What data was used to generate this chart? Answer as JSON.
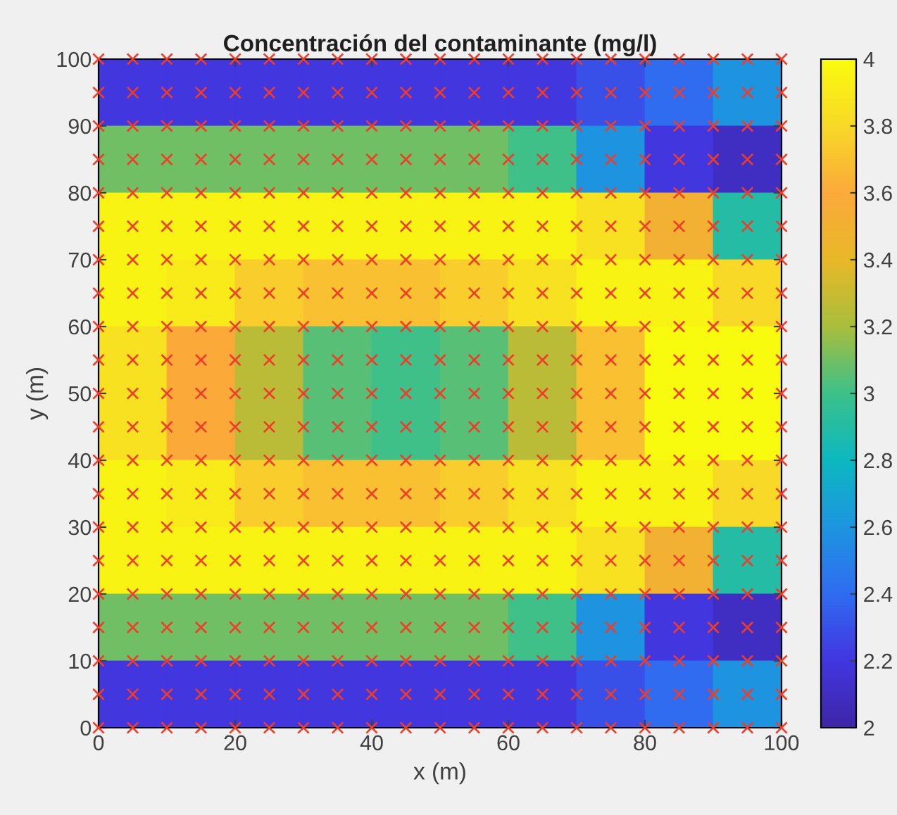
{
  "chart_data": {
    "type": "heatmap",
    "title": "Concentración del contaminante (mg/l)",
    "xlabel": "x (m)",
    "ylabel": "y (m)",
    "x": [
      5,
      15,
      25,
      35,
      45,
      55,
      65,
      75,
      85,
      95
    ],
    "y": [
      95,
      85,
      75,
      65,
      55,
      45,
      35,
      25,
      15,
      5
    ],
    "cells": [
      [
        2.2,
        2.2,
        2.2,
        2.2,
        2.2,
        2.2,
        2.2,
        2.3,
        2.4,
        2.6
      ],
      [
        3.1,
        3.1,
        3.1,
        3.1,
        3.1,
        3.1,
        3.0,
        2.6,
        2.2,
        2.1
      ],
      [
        3.95,
        3.95,
        3.95,
        3.95,
        3.95,
        3.95,
        3.95,
        3.85,
        3.5,
        2.9
      ],
      [
        3.95,
        3.9,
        3.75,
        3.7,
        3.7,
        3.75,
        3.85,
        3.95,
        3.95,
        3.8
      ],
      [
        3.85,
        3.6,
        3.25,
        3.05,
        3.0,
        3.05,
        3.25,
        3.7,
        4.0,
        4.0
      ],
      [
        3.85,
        3.6,
        3.25,
        3.05,
        3.0,
        3.05,
        3.25,
        3.7,
        4.0,
        4.0
      ],
      [
        3.95,
        3.9,
        3.75,
        3.7,
        3.7,
        3.75,
        3.85,
        3.95,
        3.95,
        3.8
      ],
      [
        3.95,
        3.95,
        3.95,
        3.95,
        3.95,
        3.95,
        3.95,
        3.85,
        3.5,
        2.9
      ],
      [
        3.1,
        3.1,
        3.1,
        3.1,
        3.1,
        3.1,
        3.0,
        2.6,
        2.2,
        2.1
      ],
      [
        2.2,
        2.2,
        2.2,
        2.2,
        2.2,
        2.2,
        2.2,
        2.3,
        2.4,
        2.6
      ]
    ],
    "colors": [
      "#3e26a8",
      "#4236e0",
      "#2f6cf0",
      "#1e95e0",
      "#0cb8c0",
      "#3cc08a",
      "#a8be3c",
      "#e8b828",
      "#fbaa3a",
      "#f8d828",
      "#f9fb0e"
    ],
    "clim": [
      2,
      4
    ],
    "cticks": [
      2,
      2.2,
      2.4,
      2.6,
      2.8,
      3,
      3.2,
      3.4,
      3.6,
      3.8,
      4
    ],
    "xlim": [
      0,
      100
    ],
    "ylim": [
      0,
      100
    ],
    "xticks": [
      0,
      20,
      40,
      60,
      80,
      100
    ],
    "yticks": [
      0,
      10,
      20,
      30,
      40,
      50,
      60,
      70,
      80,
      90,
      100
    ],
    "series": [
      {
        "type": "scatter",
        "color": "#f03c28",
        "marker": "cross",
        "x": [
          0,
          5,
          10,
          15,
          20,
          25,
          30,
          35,
          40,
          45,
          50,
          55,
          60,
          65,
          70,
          75,
          80,
          85,
          90,
          95,
          100,
          0,
          5,
          10,
          15,
          20,
          25,
          30,
          35,
          40,
          45,
          50,
          55,
          60,
          65,
          70,
          75,
          80,
          85,
          90,
          95,
          100,
          0,
          5,
          10,
          15,
          20,
          25,
          30,
          35,
          40,
          45,
          50,
          55,
          60,
          65,
          70,
          75,
          80,
          85,
          90,
          95,
          100,
          0,
          5,
          10,
          15,
          20,
          25,
          30,
          35,
          40,
          45,
          50,
          55,
          60,
          65,
          70,
          75,
          80,
          85,
          90,
          95,
          100,
          0,
          5,
          10,
          15,
          20,
          25,
          30,
          35,
          40,
          45,
          50,
          55,
          60,
          65,
          70,
          75,
          80,
          85,
          90,
          95,
          100,
          0,
          5,
          10,
          15,
          20,
          25,
          30,
          35,
          40,
          45,
          50,
          55,
          60,
          65,
          70,
          75,
          80,
          85,
          90,
          95,
          100,
          0,
          5,
          10,
          15,
          20,
          25,
          30,
          35,
          40,
          45,
          50,
          55,
          60,
          65,
          70,
          75,
          80,
          85,
          90,
          95,
          100,
          0,
          5,
          10,
          15,
          20,
          25,
          30,
          35,
          40,
          45,
          50,
          55,
          60,
          65,
          70,
          75,
          80,
          85,
          90,
          95,
          100,
          0,
          5,
          10,
          15,
          20,
          25,
          30,
          35,
          40,
          45,
          50,
          55,
          60,
          65,
          70,
          75,
          80,
          85,
          90,
          95,
          100,
          0,
          5,
          10,
          15,
          20,
          25,
          30,
          35,
          40,
          45,
          50,
          55,
          60,
          65,
          70,
          75,
          80,
          85,
          90,
          95,
          100,
          0,
          5,
          10,
          15,
          20,
          25,
          30,
          35,
          40,
          45,
          50,
          55,
          60,
          65,
          70,
          75,
          80,
          85,
          90,
          95,
          100,
          0,
          5,
          10,
          15,
          20,
          25,
          30,
          35,
          40,
          45,
          50,
          55,
          60,
          65,
          70,
          75,
          80,
          85,
          90,
          95,
          100,
          0,
          5,
          10,
          15,
          20,
          25,
          30,
          35,
          40,
          45,
          50,
          55,
          60,
          65,
          70,
          75,
          80,
          85,
          90,
          95,
          100,
          0,
          5,
          10,
          15,
          20,
          25,
          30,
          35,
          40,
          45,
          50,
          55,
          60,
          65,
          70,
          75,
          80,
          85,
          90,
          95,
          100,
          0,
          5,
          10,
          15,
          20,
          25,
          30,
          35,
          40,
          45,
          50,
          55,
          60,
          65,
          70,
          75,
          80,
          85,
          90,
          95,
          100,
          0,
          5,
          10,
          15,
          20,
          25,
          30,
          35,
          40,
          45,
          50,
          55,
          60,
          65,
          70,
          75,
          80,
          85,
          90,
          95,
          100,
          0,
          5,
          10,
          15,
          20,
          25,
          30,
          35,
          40,
          45,
          50,
          55,
          60,
          65,
          70,
          75,
          80,
          85,
          90,
          95,
          100,
          0,
          5,
          10,
          15,
          20,
          25,
          30,
          35,
          40,
          45,
          50,
          55,
          60,
          65,
          70,
          75,
          80,
          85,
          90,
          95,
          100,
          0,
          5,
          10,
          15,
          20,
          25,
          30,
          35,
          40,
          45,
          50,
          55,
          60,
          65,
          70,
          75,
          80,
          85,
          90,
          95,
          100,
          0,
          5,
          10,
          15,
          20,
          25,
          30,
          35,
          40,
          45,
          50,
          55,
          60,
          65,
          70,
          75,
          80,
          85,
          90,
          95,
          100,
          0,
          5,
          10,
          15,
          20,
          25,
          30,
          35,
          40,
          45,
          50,
          55,
          60,
          65,
          70,
          75,
          80,
          85,
          90,
          95,
          100
        ],
        "values": [
          0,
          0,
          0,
          0,
          0,
          0,
          0,
          0,
          0,
          0,
          0,
          0,
          0,
          0,
          0,
          0,
          0,
          0,
          0,
          0,
          0,
          5,
          5,
          5,
          5,
          5,
          5,
          5,
          5,
          5,
          5,
          5,
          5,
          5,
          5,
          5,
          5,
          5,
          5,
          5,
          5,
          5,
          10,
          10,
          10,
          10,
          10,
          10,
          10,
          10,
          10,
          10,
          10,
          10,
          10,
          10,
          10,
          10,
          10,
          10,
          10,
          10,
          10,
          15,
          15,
          15,
          15,
          15,
          15,
          15,
          15,
          15,
          15,
          15,
          15,
          15,
          15,
          15,
          15,
          15,
          15,
          15,
          15,
          15,
          20,
          20,
          20,
          20,
          20,
          20,
          20,
          20,
          20,
          20,
          20,
          20,
          20,
          20,
          20,
          20,
          20,
          20,
          20,
          20,
          20,
          25,
          25,
          25,
          25,
          25,
          25,
          25,
          25,
          25,
          25,
          25,
          25,
          25,
          25,
          25,
          25,
          25,
          25,
          25,
          25,
          25,
          30,
          30,
          30,
          30,
          30,
          30,
          30,
          30,
          30,
          30,
          30,
          30,
          30,
          30,
          30,
          30,
          30,
          30,
          30,
          30,
          30,
          35,
          35,
          35,
          35,
          35,
          35,
          35,
          35,
          35,
          35,
          35,
          35,
          35,
          35,
          35,
          35,
          35,
          35,
          35,
          35,
          35,
          40,
          40,
          40,
          40,
          40,
          40,
          40,
          40,
          40,
          40,
          40,
          40,
          40,
          40,
          40,
          40,
          40,
          40,
          40,
          40,
          40,
          45,
          45,
          45,
          45,
          45,
          45,
          45,
          45,
          45,
          45,
          45,
          45,
          45,
          45,
          45,
          45,
          45,
          45,
          45,
          45,
          45,
          50,
          50,
          50,
          50,
          50,
          50,
          50,
          50,
          50,
          50,
          50,
          50,
          50,
          50,
          50,
          50,
          50,
          50,
          50,
          50,
          50,
          55,
          55,
          55,
          55,
          55,
          55,
          55,
          55,
          55,
          55,
          55,
          55,
          55,
          55,
          55,
          55,
          55,
          55,
          55,
          55,
          55,
          60,
          60,
          60,
          60,
          60,
          60,
          60,
          60,
          60,
          60,
          60,
          60,
          60,
          60,
          60,
          60,
          60,
          60,
          60,
          60,
          60,
          65,
          65,
          65,
          65,
          65,
          65,
          65,
          65,
          65,
          65,
          65,
          65,
          65,
          65,
          65,
          65,
          65,
          65,
          65,
          65,
          65,
          70,
          70,
          70,
          70,
          70,
          70,
          70,
          70,
          70,
          70,
          70,
          70,
          70,
          70,
          70,
          70,
          70,
          70,
          70,
          70,
          70,
          75,
          75,
          75,
          75,
          75,
          75,
          75,
          75,
          75,
          75,
          75,
          75,
          75,
          75,
          75,
          75,
          75,
          75,
          75,
          75,
          75,
          80,
          80,
          80,
          80,
          80,
          80,
          80,
          80,
          80,
          80,
          80,
          80,
          80,
          80,
          80,
          80,
          80,
          80,
          80,
          80,
          80,
          85,
          85,
          85,
          85,
          85,
          85,
          85,
          85,
          85,
          85,
          85,
          85,
          85,
          85,
          85,
          85,
          85,
          85,
          85,
          85,
          85,
          90,
          90,
          90,
          90,
          90,
          90,
          90,
          90,
          90,
          90,
          90,
          90,
          90,
          90,
          90,
          90,
          90,
          90,
          90,
          90,
          90,
          95,
          95,
          95,
          95,
          95,
          95,
          95,
          95,
          95,
          95,
          95,
          95,
          95,
          95,
          95,
          95,
          95,
          95,
          95,
          95,
          95,
          100,
          100,
          100,
          100,
          100,
          100,
          100,
          100,
          100,
          100,
          100,
          100,
          100,
          100,
          100,
          100,
          100,
          100,
          100,
          100,
          100
        ]
      }
    ]
  }
}
